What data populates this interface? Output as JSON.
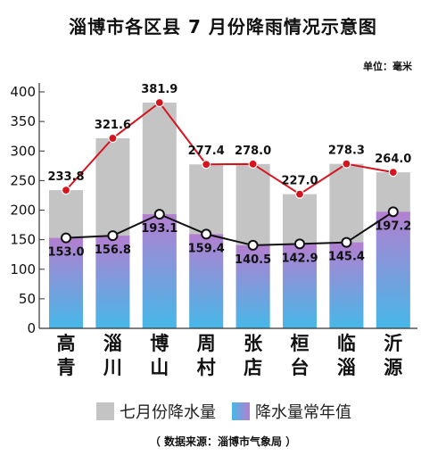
{
  "chart_data": {
    "type": "bar",
    "title": "淄博市各区县 7 月份降雨情况示意图",
    "unit": "单位：毫米",
    "source": "（ 数据来源：淄博市气象局 ）",
    "categories": [
      "高青",
      "淄川",
      "博山",
      "周村",
      "张店",
      "桓台",
      "临淄",
      "沂源"
    ],
    "series": [
      {
        "name": "七月份降水量",
        "values": [
          233.8,
          321.6,
          381.9,
          277.4,
          278.0,
          227.0,
          278.3,
          264.0
        ]
      },
      {
        "name": "降水量常年值",
        "values": [
          153.0,
          156.8,
          193.1,
          159.4,
          140.5,
          142.9,
          145.4,
          197.2
        ]
      }
    ],
    "value_labels": [
      [
        "233.8",
        "321.6",
        "381.9",
        "277.4",
        "278.0",
        "227.0",
        "278.3",
        "264.0"
      ],
      [
        "153.0",
        "156.8",
        "193.1",
        "159.4",
        "140.5",
        "142.9",
        "145.4",
        "197.2"
      ]
    ],
    "yticks": [
      "0",
      "50",
      "100",
      "150",
      "200",
      "250",
      "300",
      "350",
      "400"
    ],
    "ylim": [
      0,
      400
    ],
    "colors": {
      "bar_total": "#c4c4c4",
      "bar_normal_top": "#b37fd0",
      "bar_normal_bottom": "#46b8e8",
      "line_total": "#d6141e",
      "line_normal": "#111111"
    }
  }
}
